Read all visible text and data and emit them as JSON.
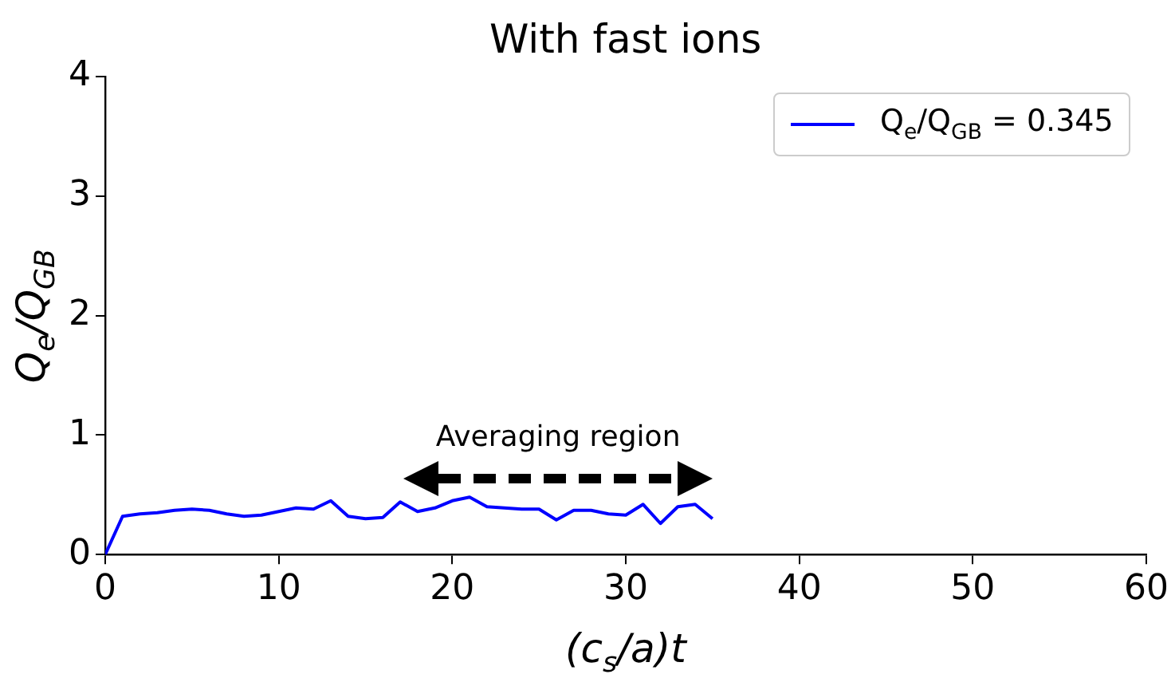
{
  "chart_data": {
    "type": "line",
    "title": "With fast ions",
    "xlabel": "(c$_{s}$/a)t",
    "ylabel": "Q$_{e}$/Q$_{GB}$",
    "x": [
      0,
      1,
      2,
      3,
      4,
      5,
      6,
      7,
      8,
      9,
      10,
      11,
      12,
      13,
      14,
      15,
      16,
      17,
      18,
      19,
      20,
      21,
      22,
      23,
      24,
      25,
      26,
      27,
      28,
      29,
      30,
      31,
      32,
      33,
      34,
      35
    ],
    "series": [
      {
        "name": "Q$_{e}$/Q$_{GB}$ = 0.345",
        "color": "#0000ff",
        "values": [
          0,
          0.32,
          0.34,
          0.35,
          0.37,
          0.38,
          0.37,
          0.34,
          0.32,
          0.33,
          0.36,
          0.39,
          0.38,
          0.45,
          0.32,
          0.3,
          0.31,
          0.44,
          0.36,
          0.39,
          0.45,
          0.48,
          0.4,
          0.39,
          0.38,
          0.38,
          0.29,
          0.37,
          0.37,
          0.34,
          0.33,
          0.42,
          0.26,
          0.4,
          0.42,
          0.3
        ]
      }
    ],
    "xlim": [
      0,
      60
    ],
    "xticks": [
      0,
      10,
      20,
      30,
      40,
      50,
      60
    ],
    "ylim": [
      0,
      4
    ],
    "yticks": [
      0,
      1,
      2,
      3,
      4
    ],
    "annotations": [
      "Averaging region"
    ],
    "grid": false,
    "legend": "top right",
    "marker": "none",
    "line_style": "solid"
  }
}
